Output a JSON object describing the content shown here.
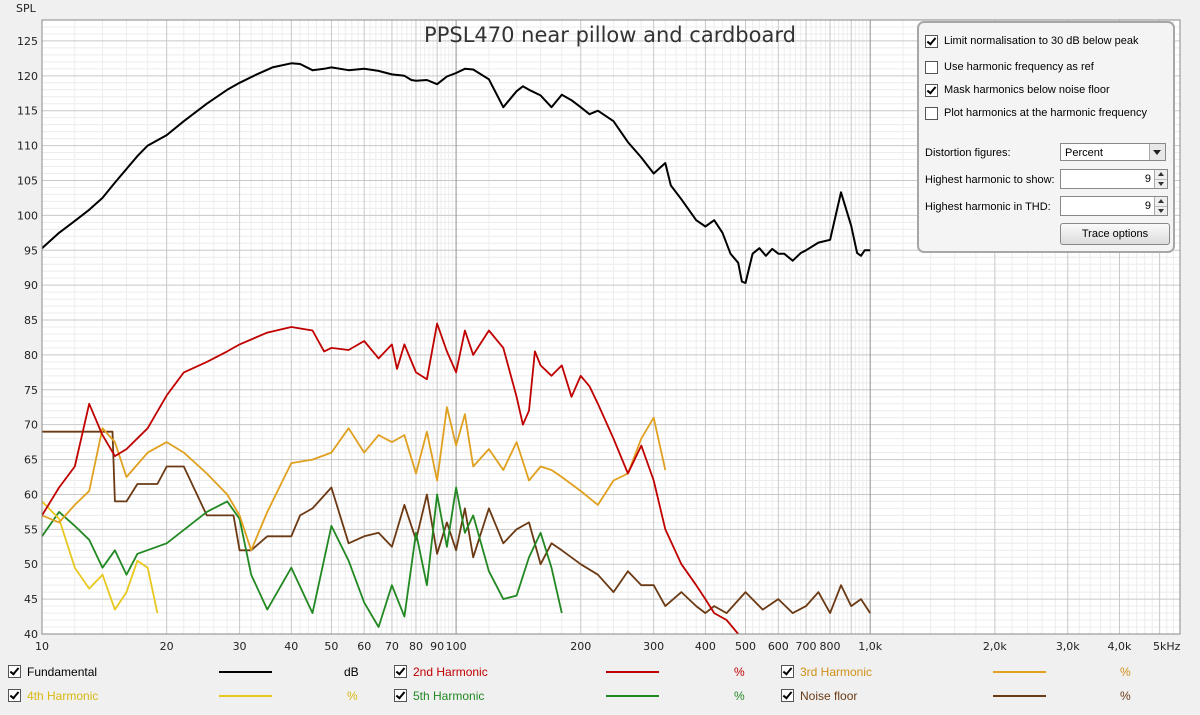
{
  "chart_data": {
    "type": "line",
    "title": "PPSL470 near pillow and cardboard",
    "ylabel": "SPL",
    "xunit": "kHz",
    "xscale": "log",
    "xlim": [
      10,
      5600
    ],
    "ylim": [
      40,
      128
    ],
    "grid": true,
    "x_ticks": [
      {
        "v": 10,
        "label": "10"
      },
      {
        "v": 20,
        "label": "20"
      },
      {
        "v": 30,
        "label": "30"
      },
      {
        "v": 40,
        "label": "40"
      },
      {
        "v": 50,
        "label": "50"
      },
      {
        "v": 60,
        "label": "60"
      },
      {
        "v": 70,
        "label": "70"
      },
      {
        "v": 80,
        "label": "80"
      },
      {
        "v": 90,
        "label": "90"
      },
      {
        "v": 100,
        "label": "100"
      },
      {
        "v": 200,
        "label": "200"
      },
      {
        "v": 300,
        "label": "300"
      },
      {
        "v": 400,
        "label": "400"
      },
      {
        "v": 500,
        "label": "500"
      },
      {
        "v": 600,
        "label": "600"
      },
      {
        "v": 700,
        "label": "700"
      },
      {
        "v": 800,
        "label": "800"
      },
      {
        "v": 1000,
        "label": "1,0k"
      },
      {
        "v": 2000,
        "label": "2,0k"
      },
      {
        "v": 3000,
        "label": "3,0k"
      },
      {
        "v": 4000,
        "label": "4,0k"
      },
      {
        "v": 5200,
        "label": "5kHz"
      }
    ],
    "y_ticks": [
      40,
      45,
      50,
      55,
      60,
      65,
      70,
      75,
      80,
      85,
      90,
      95,
      100,
      105,
      110,
      115,
      120,
      125
    ],
    "series": [
      {
        "name": "Fundamental",
        "unit": "dB",
        "color": "#000000",
        "x": [
          10,
          11,
          12,
          13,
          14,
          15,
          17,
          18,
          20,
          22,
          25,
          28,
          30,
          33,
          36,
          40,
          42,
          45,
          48,
          50,
          55,
          60,
          65,
          70,
          75,
          78,
          80,
          85,
          90,
          95,
          100,
          105,
          110,
          120,
          130,
          140,
          145,
          150,
          160,
          170,
          180,
          190,
          200,
          210,
          220,
          240,
          260,
          280,
          300,
          320,
          330,
          350,
          380,
          400,
          420,
          440,
          460,
          480,
          490,
          500,
          520,
          540,
          560,
          580,
          600,
          620,
          650,
          680,
          700,
          750,
          800,
          850,
          900,
          930,
          950,
          970,
          1000
        ],
        "y": [
          95.3,
          97.5,
          99.2,
          100.8,
          102.5,
          104.7,
          108.5,
          110,
          111.5,
          113.5,
          116,
          118,
          119,
          120.2,
          121.2,
          121.8,
          121.7,
          120.8,
          121,
          121.2,
          120.8,
          121,
          120.7,
          120.2,
          120,
          119.4,
          119.3,
          119.4,
          118.8,
          119.9,
          120.4,
          121,
          120.9,
          119.5,
          115.5,
          117.8,
          118.5,
          118,
          117.2,
          115.5,
          117.3,
          116.5,
          115.5,
          114.5,
          115,
          113.5,
          110.5,
          108.3,
          106,
          107.5,
          104.3,
          102.3,
          99.3,
          98.4,
          99.3,
          97.5,
          94.5,
          93.2,
          90.5,
          90.3,
          94.5,
          95.3,
          94.2,
          95.2,
          94.5,
          94.5,
          93.5,
          94.6,
          95,
          96.1,
          96.5,
          103.3,
          98.5,
          94.6,
          94.2,
          95,
          95
        ]
      },
      {
        "name": "2nd Harmonic",
        "unit": "%",
        "color": "#c00000",
        "x": [
          10,
          11,
          12,
          13,
          14,
          15,
          16,
          18,
          20,
          22,
          25,
          28,
          30,
          35,
          40,
          45,
          48,
          50,
          55,
          60,
          65,
          70,
          72,
          75,
          80,
          85,
          90,
          95,
          100,
          105,
          110,
          120,
          130,
          140,
          145,
          150,
          155,
          160,
          170,
          180,
          190,
          200,
          210,
          220,
          240,
          260,
          280,
          300,
          320,
          350,
          380,
          400,
          420,
          450,
          480
        ],
        "y": [
          57,
          61,
          64,
          73,
          68.5,
          65.5,
          66.5,
          69.5,
          74.2,
          77.5,
          79,
          80.5,
          81.5,
          83.2,
          84,
          83.5,
          80.5,
          81,
          80.7,
          82,
          79.5,
          81.5,
          78,
          81.5,
          77.5,
          76.5,
          84.5,
          80.5,
          77.5,
          83.5,
          80,
          83.5,
          81,
          74,
          70,
          72,
          80.5,
          78.5,
          77,
          78.5,
          74,
          77,
          75.5,
          73,
          68,
          63,
          67,
          62,
          55,
          50,
          47,
          45,
          43,
          42,
          40
        ]
      },
      {
        "name": "3rd Harmonic",
        "unit": "%",
        "color": "#e0a020",
        "x": [
          10,
          11,
          12,
          13,
          14,
          15,
          16,
          18,
          20,
          22,
          25,
          28,
          30,
          32,
          35,
          40,
          45,
          50,
          55,
          60,
          65,
          70,
          75,
          80,
          85,
          90,
          95,
          100,
          105,
          110,
          120,
          130,
          140,
          150,
          160,
          170,
          180,
          200,
          220,
          240,
          260,
          280,
          300,
          320
        ],
        "y": [
          57,
          56,
          58.5,
          60.5,
          69.5,
          67.5,
          62.5,
          66,
          67.5,
          66,
          63,
          60,
          57,
          52,
          57.5,
          64.5,
          65,
          66,
          69.5,
          66,
          68.5,
          67.5,
          68.5,
          63,
          69,
          62,
          72.5,
          67,
          71.5,
          64,
          66.5,
          63.5,
          67.5,
          62,
          64,
          63.5,
          62.5,
          60.5,
          58.5,
          62,
          63,
          68,
          71,
          63.5
        ]
      },
      {
        "name": "4th Harmonic",
        "unit": "%",
        "color": "#e8c820",
        "x": [
          10,
          11,
          12,
          13,
          14,
          15,
          16,
          17,
          18,
          19
        ],
        "y": [
          59,
          56.5,
          49.5,
          46.5,
          48.5,
          43.5,
          46,
          50.5,
          49.5,
          43
        ]
      },
      {
        "name": "5th Harmonic",
        "unit": "%",
        "color": "#228822",
        "x": [
          10,
          11,
          12,
          13,
          14,
          15,
          16,
          17,
          20,
          25,
          28,
          30,
          32,
          35,
          40,
          45,
          50,
          55,
          60,
          65,
          70,
          75,
          80,
          85,
          90,
          95,
          100,
          105,
          110,
          120,
          130,
          140,
          150,
          160,
          170,
          180
        ],
        "y": [
          54,
          57.5,
          55.5,
          53.5,
          49.5,
          52,
          48.5,
          51.5,
          53,
          57.5,
          59,
          56.5,
          48.5,
          43.5,
          49.5,
          43,
          55.5,
          50.5,
          44.5,
          41,
          47,
          42.5,
          54.5,
          47,
          60,
          52.5,
          61,
          54.5,
          57,
          49,
          45,
          45.5,
          51,
          54.5,
          49.5,
          43
        ]
      },
      {
        "name": "Noise floor",
        "unit": "%",
        "color": "#6b3a14",
        "x": [
          10,
          12,
          13,
          14,
          14.8,
          15,
          16,
          17,
          18,
          19,
          20,
          22,
          25,
          27,
          29,
          30,
          32,
          35,
          40,
          42,
          45,
          50,
          55,
          60,
          65,
          70,
          75,
          80,
          85,
          90,
          95,
          100,
          105,
          110,
          120,
          130,
          140,
          150,
          160,
          170,
          180,
          200,
          220,
          240,
          260,
          280,
          300,
          320,
          350,
          380,
          400,
          420,
          450,
          500,
          550,
          600,
          650,
          700,
          750,
          800,
          850,
          900,
          950,
          1000
        ],
        "y": [
          69,
          69,
          69,
          69,
          69,
          59,
          59,
          61.5,
          61.5,
          61.5,
          64,
          64,
          57,
          57,
          57,
          52,
          52,
          54,
          54,
          57,
          58,
          61,
          53,
          54,
          54.5,
          52.5,
          58.5,
          53.5,
          60,
          51.5,
          56,
          52,
          58,
          51,
          58,
          53,
          55,
          56,
          50,
          53,
          52,
          50,
          48.5,
          46,
          49,
          47,
          47,
          44,
          46,
          44,
          43,
          44,
          43,
          46,
          43.5,
          45,
          43,
          44,
          46,
          43,
          47,
          44,
          45,
          43
        ]
      }
    ]
  },
  "options_panel": {
    "checkboxes": [
      {
        "label": "Limit normalisation to 30 dB below peak",
        "checked": true
      },
      {
        "label": "Use harmonic frequency as ref",
        "checked": false
      },
      {
        "label": "Mask harmonics below noise floor",
        "checked": true
      },
      {
        "label": "Plot harmonics at the harmonic frequency",
        "checked": false
      }
    ],
    "distortion_figures_label": "Distortion figures:",
    "distortion_figures_value": "Percent",
    "highest_harmonic_show_label": "Highest harmonic to show:",
    "highest_harmonic_show_value": "9",
    "highest_harmonic_thd_label": "Highest harmonic in THD:",
    "highest_harmonic_thd_value": "9",
    "trace_options_label": "Trace options"
  },
  "legend": [
    {
      "label": "Fundamental",
      "unit": "dB",
      "color": "#000000",
      "label_color": "#000000",
      "checked": true
    },
    {
      "label": "2nd Harmonic",
      "unit": "%",
      "color": "#c00000",
      "label_color": "#c00000",
      "checked": true
    },
    {
      "label": "3rd Harmonic",
      "unit": "%",
      "color": "#e0a020",
      "label_color": "#d09018",
      "checked": true
    },
    {
      "label": "4th Harmonic",
      "unit": "%",
      "color": "#e8c820",
      "label_color": "#d8b810",
      "checked": true
    },
    {
      "label": "5th Harmonic",
      "unit": "%",
      "color": "#228822",
      "label_color": "#228822",
      "checked": true
    },
    {
      "label": "Noise floor",
      "unit": "%",
      "color": "#6b3a14",
      "label_color": "#6b3a14",
      "checked": true
    }
  ]
}
